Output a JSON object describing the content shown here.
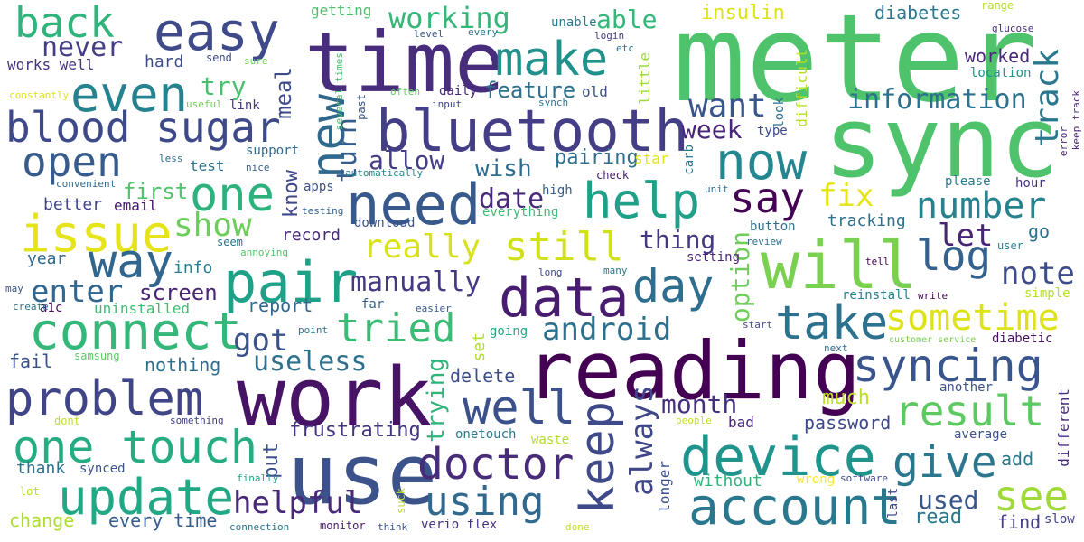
{
  "words": [
    {
      "text": "meter",
      "color": "#4ec36b"
    },
    {
      "text": "sync",
      "color": "#4ec36b"
    },
    {
      "text": "time",
      "color": "#472d7b"
    },
    {
      "text": "reading",
      "color": "#440154"
    },
    {
      "text": "work",
      "color": "#471365"
    },
    {
      "text": "use",
      "color": "#3b528b"
    },
    {
      "text": "bluetooth",
      "color": "#433e85"
    },
    {
      "text": "will",
      "color": "#7ad151"
    },
    {
      "text": "data",
      "color": "#481d6f"
    },
    {
      "text": "device",
      "color": "#1f948c"
    },
    {
      "text": "account",
      "color": "#2a788e"
    },
    {
      "text": "pair",
      "color": "#1fa187"
    },
    {
      "text": "need",
      "color": "#38598c"
    },
    {
      "text": "blood sugar",
      "color": "#3e4989"
    },
    {
      "text": "problem",
      "color": "#404588"
    },
    {
      "text": "connect",
      "color": "#35b779"
    },
    {
      "text": "update",
      "color": "#22a884"
    },
    {
      "text": "one touch",
      "color": "#25ac82"
    },
    {
      "text": "issue",
      "color": "#e5e419"
    },
    {
      "text": "even",
      "color": "#26828e"
    },
    {
      "text": "easy",
      "color": "#3e4a89"
    },
    {
      "text": "back",
      "color": "#2fb47c"
    },
    {
      "text": "make",
      "color": "#21918c"
    },
    {
      "text": "help",
      "color": "#1fa088"
    },
    {
      "text": "now",
      "color": "#24868e"
    },
    {
      "text": "new",
      "color": "#31688e"
    },
    {
      "text": "one",
      "color": "#2db27d"
    },
    {
      "text": "way",
      "color": "#31668e"
    },
    {
      "text": "open",
      "color": "#375b8d"
    },
    {
      "text": "day",
      "color": "#2e6e8e"
    },
    {
      "text": "say",
      "color": "#440154"
    },
    {
      "text": "take",
      "color": "#2c728e"
    },
    {
      "text": "syncing",
      "color": "#3a548c"
    },
    {
      "text": "well",
      "color": "#3b518b"
    },
    {
      "text": "doctor",
      "color": "#472c7a"
    },
    {
      "text": "using",
      "color": "#31688e"
    },
    {
      "text": "keep",
      "color": "#3e4a89"
    },
    {
      "text": "give",
      "color": "#2a778e"
    },
    {
      "text": "see",
      "color": "#a0da39"
    },
    {
      "text": "result",
      "color": "#5ec962"
    },
    {
      "text": "log",
      "color": "#34618d"
    },
    {
      "text": "sometime",
      "color": "#dde318"
    },
    {
      "text": "number",
      "color": "#26828e"
    },
    {
      "text": "note",
      "color": "#3e4c8a"
    },
    {
      "text": "tried",
      "color": "#3bbb75"
    },
    {
      "text": "still",
      "color": "#d0e11c"
    },
    {
      "text": "really",
      "color": "#d8e219"
    },
    {
      "text": "manually",
      "color": "#443983"
    },
    {
      "text": "android",
      "color": "#2d708e"
    },
    {
      "text": "helpful",
      "color": "#482878"
    },
    {
      "text": "working",
      "color": "#35b779"
    },
    {
      "text": "never",
      "color": "#433e85"
    },
    {
      "text": "want",
      "color": "#39568c"
    },
    {
      "text": "information",
      "color": "#2c728e"
    },
    {
      "text": "track",
      "color": "#2a788e"
    },
    {
      "text": "fix",
      "color": "#e5e419"
    },
    {
      "text": "let",
      "color": "#482475"
    },
    {
      "text": "show",
      "color": "#6ccd5a"
    },
    {
      "text": "enter",
      "color": "#31668e"
    },
    {
      "text": "screen",
      "color": "#482475"
    },
    {
      "text": "got",
      "color": "#3b528b"
    },
    {
      "text": "useless",
      "color": "#2c728e"
    },
    {
      "text": "allow",
      "color": "#433e85"
    },
    {
      "text": "wish",
      "color": "#2f6c8e"
    },
    {
      "text": "turn",
      "color": "#365c8d"
    },
    {
      "text": "date",
      "color": "#472a7a"
    },
    {
      "text": "feature",
      "color": "#2d708e"
    },
    {
      "text": "pairing",
      "color": "#2e6e8e"
    },
    {
      "text": "thing",
      "color": "#443a83"
    },
    {
      "text": "option",
      "color": "#6ece58"
    },
    {
      "text": "week",
      "color": "#482576"
    },
    {
      "text": "month",
      "color": "#46307e"
    },
    {
      "text": "always",
      "color": "#3f4788"
    },
    {
      "text": "frustrating",
      "color": "#453581"
    },
    {
      "text": "trying",
      "color": "#2fb47c"
    },
    {
      "text": "delete",
      "color": "#3d4e8a"
    },
    {
      "text": "password",
      "color": "#3e4989"
    },
    {
      "text": "used",
      "color": "#39568c"
    },
    {
      "text": "read",
      "color": "#29798e"
    },
    {
      "text": "find",
      "color": "#433e85"
    },
    {
      "text": "add",
      "color": "#2a788e"
    },
    {
      "text": "try",
      "color": "#48c16e"
    },
    {
      "text": "meal",
      "color": "#3e4a89"
    },
    {
      "text": "hard",
      "color": "#3d4d8a"
    },
    {
      "text": "works well",
      "color": "#46337f"
    },
    {
      "text": "first",
      "color": "#50c46a"
    },
    {
      "text": "know",
      "color": "#3f4889"
    },
    {
      "text": "info",
      "color": "#277f8e"
    },
    {
      "text": "year",
      "color": "#31688e"
    },
    {
      "text": "report",
      "color": "#31688e"
    },
    {
      "text": "nothing",
      "color": "#2e6f8e"
    },
    {
      "text": "fail",
      "color": "#3b528b"
    },
    {
      "text": "record",
      "color": "#472a7a"
    },
    {
      "text": "better",
      "color": "#404588"
    },
    {
      "text": "email",
      "color": "#481668"
    },
    {
      "text": "change",
      "color": "#addc30"
    },
    {
      "text": "thank",
      "color": "#2c718e"
    },
    {
      "text": "synced",
      "color": "#3a548c"
    },
    {
      "text": "every time",
      "color": "#365d8d"
    },
    {
      "text": "put",
      "color": "#3c508b"
    },
    {
      "text": "much",
      "color": "#bddf26"
    },
    {
      "text": "another",
      "color": "#3a548c"
    },
    {
      "text": "average",
      "color": "#3b528b"
    },
    {
      "text": "different",
      "color": "#472c7a"
    },
    {
      "text": "worked",
      "color": "#472a7a"
    },
    {
      "text": "location",
      "color": "#21918c"
    },
    {
      "text": "diabetes",
      "color": "#2a788e"
    },
    {
      "text": "insulin",
      "color": "#dde318"
    },
    {
      "text": "able",
      "color": "#35b779"
    },
    {
      "text": "unable",
      "color": "#2a788e"
    },
    {
      "text": "getting",
      "color": "#4ac16d"
    },
    {
      "text": "send",
      "color": "#3e4a89"
    },
    {
      "text": "link",
      "color": "#453781"
    },
    {
      "text": "test",
      "color": "#2c728e"
    },
    {
      "text": "support",
      "color": "#31688e"
    },
    {
      "text": "daily",
      "color": "#482878"
    },
    {
      "text": "old",
      "color": "#3b528b"
    },
    {
      "text": "little",
      "color": "#9bd93c"
    },
    {
      "text": "difficult",
      "color": "#b5de2b"
    },
    {
      "text": "look",
      "color": "#2e6e8e"
    },
    {
      "text": "type",
      "color": "#3e4a89"
    },
    {
      "text": "hour",
      "color": "#46327e"
    },
    {
      "text": "please",
      "color": "#2a788e"
    },
    {
      "text": "tracking",
      "color": "#2c718e"
    },
    {
      "text": "go",
      "color": "#2d708e"
    },
    {
      "text": "user",
      "color": "#26828e"
    },
    {
      "text": "tell",
      "color": "#440154"
    },
    {
      "text": "setting",
      "color": "#482475"
    },
    {
      "text": "button",
      "color": "#2e6f8e"
    },
    {
      "text": "review",
      "color": "#2e6e8e"
    },
    {
      "text": "reinstall",
      "color": "#26818e"
    },
    {
      "text": "write",
      "color": "#440154"
    },
    {
      "text": "simple",
      "color": "#b5de2b"
    },
    {
      "text": "diabetic",
      "color": "#471164"
    },
    {
      "text": "customer service",
      "color": "#7ad151"
    },
    {
      "text": "next",
      "color": "#2e6e8e"
    },
    {
      "text": "start",
      "color": "#3e4a89"
    },
    {
      "text": "bad",
      "color": "#482576"
    },
    {
      "text": "people",
      "color": "#bddf26"
    },
    {
      "text": "waste",
      "color": "#b2dd2d"
    },
    {
      "text": "without",
      "color": "#2fb47c"
    },
    {
      "text": "longer",
      "color": "#3b528b"
    },
    {
      "text": "wrong",
      "color": "#fde725"
    },
    {
      "text": "software",
      "color": "#3e4c8a"
    },
    {
      "text": "last",
      "color": "#3f4889"
    },
    {
      "text": "slow",
      "color": "#414487"
    },
    {
      "text": "star",
      "color": "#e2e418"
    },
    {
      "text": "carb",
      "color": "#2a788e"
    },
    {
      "text": "check",
      "color": "#481d6f"
    },
    {
      "text": "unit",
      "color": "#2e6e8e"
    },
    {
      "text": "high",
      "color": "#355f8d"
    },
    {
      "text": "everything",
      "color": "#3dbc74"
    },
    {
      "text": "download",
      "color": "#3b528b"
    },
    {
      "text": "testing",
      "color": "#34618d"
    },
    {
      "text": "apps",
      "color": "#3b518b"
    },
    {
      "text": "automatically",
      "color": "#24868e"
    },
    {
      "text": "convenient",
      "color": "#31688e"
    },
    {
      "text": "less",
      "color": "#2e6f8e"
    },
    {
      "text": "nice",
      "color": "#34618d"
    },
    {
      "text": "seem",
      "color": "#2c728e"
    },
    {
      "text": "annoying",
      "color": "#54c568"
    },
    {
      "text": "a1c",
      "color": "#471063"
    },
    {
      "text": "may",
      "color": "#3b528b"
    },
    {
      "text": "create",
      "color": "#2f6c8e"
    },
    {
      "text": "uninstalled",
      "color": "#3fbc73"
    },
    {
      "text": "samsung",
      "color": "#5ec962"
    },
    {
      "text": "far",
      "color": "#34608d"
    },
    {
      "text": "easier",
      "color": "#38598c"
    },
    {
      "text": "point",
      "color": "#2a788e"
    },
    {
      "text": "set",
      "color": "#b0dd2f"
    },
    {
      "text": "going",
      "color": "#22a884"
    },
    {
      "text": "dont",
      "color": "#c2df23"
    },
    {
      "text": "something",
      "color": "#424086"
    },
    {
      "text": "onetouch",
      "color": "#29798e"
    },
    {
      "text": "verio flex",
      "color": "#46337f"
    },
    {
      "text": "suck",
      "color": "#b8de29"
    },
    {
      "text": "think",
      "color": "#3d4e8a"
    },
    {
      "text": "done",
      "color": "#bddf26"
    },
    {
      "text": "lot",
      "color": "#b5de2b"
    },
    {
      "text": "finally",
      "color": "#20a386"
    },
    {
      "text": "connection",
      "color": "#2c728e"
    },
    {
      "text": "monitor",
      "color": "#481a6c"
    },
    {
      "text": "long",
      "color": "#3e4a89"
    },
    {
      "text": "many",
      "color": "#2a788e"
    },
    {
      "text": "constantly",
      "color": "#dde318"
    },
    {
      "text": "useful",
      "color": "#70cf57"
    },
    {
      "text": "sure",
      "color": "#75d054"
    },
    {
      "text": "several times",
      "color": "#4ac16d"
    },
    {
      "text": "past",
      "color": "#39568c"
    },
    {
      "text": "input",
      "color": "#3e4a89"
    },
    {
      "text": "often",
      "color": "#5ec962"
    },
    {
      "text": "synch",
      "color": "#2c728e"
    },
    {
      "text": "level",
      "color": "#39568c"
    },
    {
      "text": "every",
      "color": "#2c728e"
    },
    {
      "text": "login",
      "color": "#433e85"
    },
    {
      "text": "etc",
      "color": "#2d708e"
    },
    {
      "text": "range",
      "color": "#b5de2b"
    },
    {
      "text": "glucose",
      "color": "#472d7b"
    },
    {
      "text": "error",
      "color": "#482173"
    },
    {
      "text": "keep track",
      "color": "#482878"
    }
  ]
}
